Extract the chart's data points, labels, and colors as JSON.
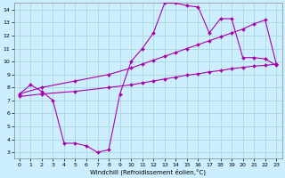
{
  "xlabel": "Windchill (Refroidissement éolien,°C)",
  "background_color": "#cceeff",
  "grid_color": "#aadddd",
  "line_color": "#aa00aa",
  "xlim": [
    -0.5,
    23.5
  ],
  "ylim": [
    2.5,
    14.5
  ],
  "xticks": [
    0,
    1,
    2,
    3,
    4,
    5,
    6,
    7,
    8,
    9,
    10,
    11,
    12,
    13,
    14,
    15,
    16,
    17,
    18,
    19,
    20,
    21,
    22,
    23
  ],
  "yticks": [
    3,
    4,
    5,
    6,
    7,
    8,
    9,
    10,
    11,
    12,
    13,
    14
  ],
  "line1_x": [
    0,
    1,
    2,
    3,
    4,
    5,
    6,
    7,
    8,
    9,
    10,
    11,
    12,
    13,
    14,
    15,
    16,
    17,
    18,
    19,
    20,
    21,
    22,
    23
  ],
  "line1_y": [
    7.5,
    8.2,
    7.7,
    7.0,
    3.7,
    3.7,
    3.5,
    3.0,
    3.2,
    7.5,
    10.0,
    11.0,
    12.2,
    14.5,
    14.5,
    14.3,
    14.2,
    12.2,
    13.3,
    13.3,
    10.3,
    10.3,
    10.2,
    9.7
  ],
  "line2_x": [
    0,
    2,
    5,
    8,
    10,
    11,
    12,
    13,
    14,
    15,
    16,
    17,
    18,
    19,
    20,
    21,
    22,
    23
  ],
  "line2_y": [
    7.5,
    8.0,
    8.5,
    9.0,
    9.5,
    9.8,
    10.1,
    10.4,
    10.7,
    11.0,
    11.3,
    11.6,
    11.9,
    12.2,
    12.5,
    12.9,
    13.2,
    9.8
  ],
  "line3_x": [
    0,
    2,
    5,
    8,
    10,
    11,
    12,
    13,
    14,
    15,
    16,
    17,
    18,
    19,
    20,
    21,
    22,
    23
  ],
  "line3_y": [
    7.3,
    7.5,
    7.7,
    8.0,
    8.2,
    8.35,
    8.5,
    8.65,
    8.8,
    8.95,
    9.05,
    9.2,
    9.3,
    9.45,
    9.55,
    9.65,
    9.7,
    9.8
  ]
}
